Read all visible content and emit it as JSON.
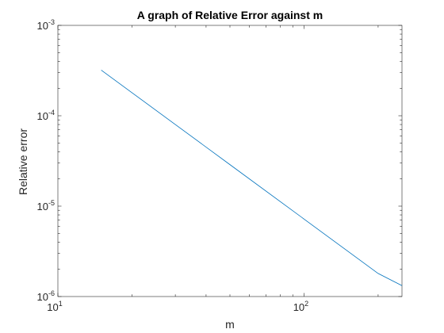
{
  "chart_data": {
    "type": "line",
    "title": "A graph of Relative Error against m",
    "xlabel": "m",
    "ylabel": "Relative error",
    "xscale": "log",
    "yscale": "log",
    "xlim": [
      10,
      250
    ],
    "ylim": [
      1e-06,
      0.001
    ],
    "grid": false,
    "x_ticks": [
      {
        "value": 10,
        "base": "10",
        "exp": "1"
      },
      {
        "value": 100,
        "base": "10",
        "exp": "2"
      }
    ],
    "y_ticks": [
      {
        "value": 1e-06,
        "base": "10",
        "exp": "-6"
      },
      {
        "value": 1e-05,
        "base": "10",
        "exp": "-5"
      },
      {
        "value": 0.0001,
        "base": "10",
        "exp": "-4"
      },
      {
        "value": 0.001,
        "base": "10",
        "exp": "-3"
      }
    ],
    "series": [
      {
        "color": "#0072bd",
        "x": [
          15,
          20,
          30,
          50,
          100,
          150,
          200,
          250
        ],
        "y": [
          0.00032,
          0.00018,
          8e-05,
          2.88e-05,
          7.2e-06,
          3.2e-06,
          1.8e-06,
          1.32e-06
        ]
      }
    ]
  }
}
